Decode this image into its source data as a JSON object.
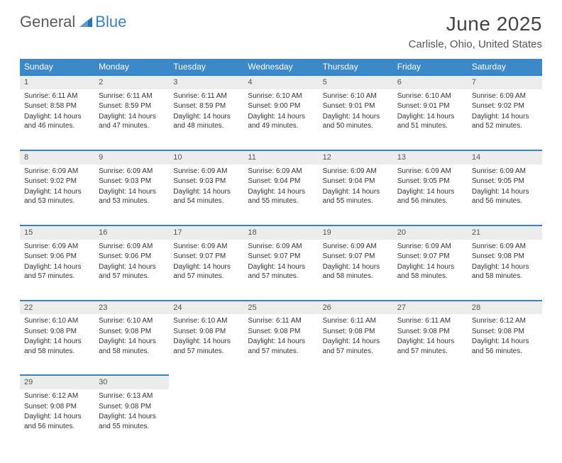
{
  "brand": {
    "part1": "General",
    "part2": "Blue"
  },
  "title": "June 2025",
  "location": "Carlisle, Ohio, United States",
  "colors": {
    "header_bg": "#3b89c9",
    "accent_border": "#3b7fc4",
    "daynum_bg": "#ececec",
    "text": "#333333",
    "muted": "#555555",
    "page_bg": "#ffffff"
  },
  "typography": {
    "title_fontsize": 28,
    "location_fontsize": 15,
    "header_fontsize": 12,
    "cell_fontsize": 10
  },
  "weekdays": [
    "Sunday",
    "Monday",
    "Tuesday",
    "Wednesday",
    "Thursday",
    "Friday",
    "Saturday"
  ],
  "weeks": [
    [
      {
        "day": "1",
        "sunrise": "Sunrise: 6:11 AM",
        "sunset": "Sunset: 8:58 PM",
        "daylight": "Daylight: 14 hours and 46 minutes."
      },
      {
        "day": "2",
        "sunrise": "Sunrise: 6:11 AM",
        "sunset": "Sunset: 8:59 PM",
        "daylight": "Daylight: 14 hours and 47 minutes."
      },
      {
        "day": "3",
        "sunrise": "Sunrise: 6:11 AM",
        "sunset": "Sunset: 8:59 PM",
        "daylight": "Daylight: 14 hours and 48 minutes."
      },
      {
        "day": "4",
        "sunrise": "Sunrise: 6:10 AM",
        "sunset": "Sunset: 9:00 PM",
        "daylight": "Daylight: 14 hours and 49 minutes."
      },
      {
        "day": "5",
        "sunrise": "Sunrise: 6:10 AM",
        "sunset": "Sunset: 9:01 PM",
        "daylight": "Daylight: 14 hours and 50 minutes."
      },
      {
        "day": "6",
        "sunrise": "Sunrise: 6:10 AM",
        "sunset": "Sunset: 9:01 PM",
        "daylight": "Daylight: 14 hours and 51 minutes."
      },
      {
        "day": "7",
        "sunrise": "Sunrise: 6:09 AM",
        "sunset": "Sunset: 9:02 PM",
        "daylight": "Daylight: 14 hours and 52 minutes."
      }
    ],
    [
      {
        "day": "8",
        "sunrise": "Sunrise: 6:09 AM",
        "sunset": "Sunset: 9:02 PM",
        "daylight": "Daylight: 14 hours and 53 minutes."
      },
      {
        "day": "9",
        "sunrise": "Sunrise: 6:09 AM",
        "sunset": "Sunset: 9:03 PM",
        "daylight": "Daylight: 14 hours and 53 minutes."
      },
      {
        "day": "10",
        "sunrise": "Sunrise: 6:09 AM",
        "sunset": "Sunset: 9:03 PM",
        "daylight": "Daylight: 14 hours and 54 minutes."
      },
      {
        "day": "11",
        "sunrise": "Sunrise: 6:09 AM",
        "sunset": "Sunset: 9:04 PM",
        "daylight": "Daylight: 14 hours and 55 minutes."
      },
      {
        "day": "12",
        "sunrise": "Sunrise: 6:09 AM",
        "sunset": "Sunset: 9:04 PM",
        "daylight": "Daylight: 14 hours and 55 minutes."
      },
      {
        "day": "13",
        "sunrise": "Sunrise: 6:09 AM",
        "sunset": "Sunset: 9:05 PM",
        "daylight": "Daylight: 14 hours and 56 minutes."
      },
      {
        "day": "14",
        "sunrise": "Sunrise: 6:09 AM",
        "sunset": "Sunset: 9:05 PM",
        "daylight": "Daylight: 14 hours and 56 minutes."
      }
    ],
    [
      {
        "day": "15",
        "sunrise": "Sunrise: 6:09 AM",
        "sunset": "Sunset: 9:06 PM",
        "daylight": "Daylight: 14 hours and 57 minutes."
      },
      {
        "day": "16",
        "sunrise": "Sunrise: 6:09 AM",
        "sunset": "Sunset: 9:06 PM",
        "daylight": "Daylight: 14 hours and 57 minutes."
      },
      {
        "day": "17",
        "sunrise": "Sunrise: 6:09 AM",
        "sunset": "Sunset: 9:07 PM",
        "daylight": "Daylight: 14 hours and 57 minutes."
      },
      {
        "day": "18",
        "sunrise": "Sunrise: 6:09 AM",
        "sunset": "Sunset: 9:07 PM",
        "daylight": "Daylight: 14 hours and 57 minutes."
      },
      {
        "day": "19",
        "sunrise": "Sunrise: 6:09 AM",
        "sunset": "Sunset: 9:07 PM",
        "daylight": "Daylight: 14 hours and 58 minutes."
      },
      {
        "day": "20",
        "sunrise": "Sunrise: 6:09 AM",
        "sunset": "Sunset: 9:07 PM",
        "daylight": "Daylight: 14 hours and 58 minutes."
      },
      {
        "day": "21",
        "sunrise": "Sunrise: 6:09 AM",
        "sunset": "Sunset: 9:08 PM",
        "daylight": "Daylight: 14 hours and 58 minutes."
      }
    ],
    [
      {
        "day": "22",
        "sunrise": "Sunrise: 6:10 AM",
        "sunset": "Sunset: 9:08 PM",
        "daylight": "Daylight: 14 hours and 58 minutes."
      },
      {
        "day": "23",
        "sunrise": "Sunrise: 6:10 AM",
        "sunset": "Sunset: 9:08 PM",
        "daylight": "Daylight: 14 hours and 58 minutes."
      },
      {
        "day": "24",
        "sunrise": "Sunrise: 6:10 AM",
        "sunset": "Sunset: 9:08 PM",
        "daylight": "Daylight: 14 hours and 57 minutes."
      },
      {
        "day": "25",
        "sunrise": "Sunrise: 6:11 AM",
        "sunset": "Sunset: 9:08 PM",
        "daylight": "Daylight: 14 hours and 57 minutes."
      },
      {
        "day": "26",
        "sunrise": "Sunrise: 6:11 AM",
        "sunset": "Sunset: 9:08 PM",
        "daylight": "Daylight: 14 hours and 57 minutes."
      },
      {
        "day": "27",
        "sunrise": "Sunrise: 6:11 AM",
        "sunset": "Sunset: 9:08 PM",
        "daylight": "Daylight: 14 hours and 57 minutes."
      },
      {
        "day": "28",
        "sunrise": "Sunrise: 6:12 AM",
        "sunset": "Sunset: 9:08 PM",
        "daylight": "Daylight: 14 hours and 56 minutes."
      }
    ],
    [
      {
        "day": "29",
        "sunrise": "Sunrise: 6:12 AM",
        "sunset": "Sunset: 9:08 PM",
        "daylight": "Daylight: 14 hours and 56 minutes."
      },
      {
        "day": "30",
        "sunrise": "Sunrise: 6:13 AM",
        "sunset": "Sunset: 9:08 PM",
        "daylight": "Daylight: 14 hours and 55 minutes."
      },
      null,
      null,
      null,
      null,
      null
    ]
  ]
}
